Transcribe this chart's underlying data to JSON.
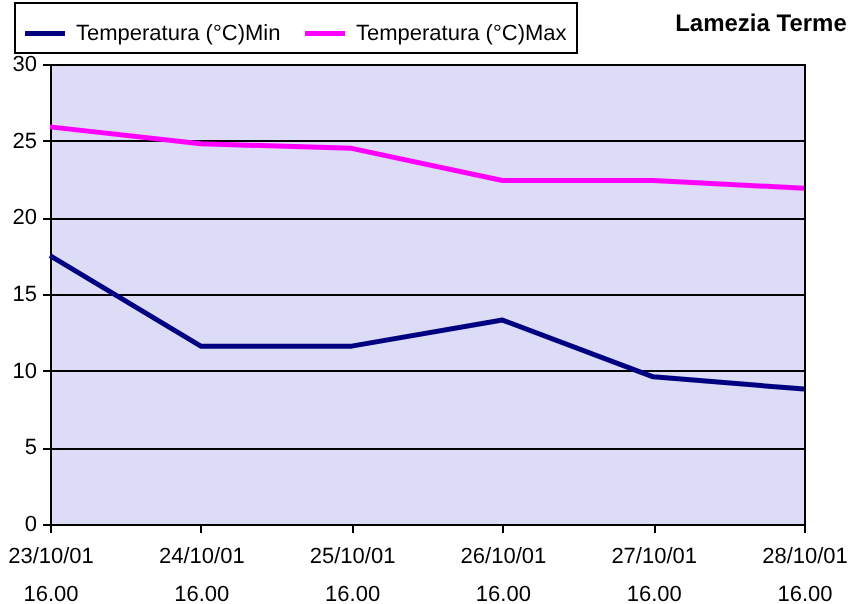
{
  "chart_data": {
    "type": "line",
    "title": "Lamezia Terme",
    "categories": [
      "23/10/01 16.00",
      "24/10/01 16.00",
      "25/10/01 16.00",
      "26/10/01 16.00",
      "27/10/01 16.00",
      "28/10/01 16.00"
    ],
    "series": [
      {
        "name": "Temperatura (°C)Min",
        "color": "#000080",
        "values": [
          17.5,
          11.6,
          11.6,
          13.3,
          9.6,
          8.8
        ]
      },
      {
        "name": "Temperatura (°C)Max",
        "color": "#ff00ff",
        "values": [
          25.9,
          24.8,
          24.5,
          22.4,
          22.4,
          21.9
        ]
      }
    ],
    "ylim": [
      0,
      30
    ],
    "yticks": [
      0,
      5,
      10,
      15,
      20,
      25,
      30
    ],
    "grid": "y",
    "legend": "top",
    "marker": "none",
    "line_style": "solid"
  }
}
